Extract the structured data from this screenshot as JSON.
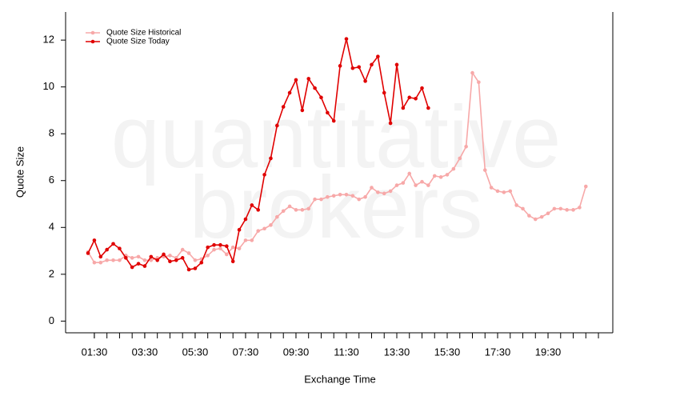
{
  "chart_data": {
    "type": "line",
    "watermark": [
      "quantitative",
      "brokers"
    ],
    "x_label": "Exchange Time",
    "y_label": "Quote Size",
    "x": [
      1.25,
      1.5,
      1.75,
      2,
      2.25,
      2.5,
      2.75,
      3,
      3.25,
      3.5,
      3.75,
      4,
      4.25,
      4.5,
      4.75,
      5,
      5.25,
      5.5,
      5.75,
      6,
      6.25,
      6.5,
      6.75,
      7,
      7.25,
      7.5,
      7.75,
      8,
      8.25,
      8.5,
      8.75,
      9,
      9.25,
      9.5,
      9.75,
      10,
      10.25,
      10.5,
      10.75,
      11,
      11.25,
      11.5,
      11.75,
      12,
      12.25,
      12.5,
      12.75,
      13,
      13.25,
      13.5,
      13.75,
      14,
      14.25,
      14.5,
      14.75,
      15,
      15.25,
      15.5,
      15.75,
      16,
      16.25,
      16.5,
      16.75,
      17,
      17.25,
      17.5,
      17.75,
      18,
      18.25,
      18.5,
      18.75,
      19,
      19.25,
      19.5,
      19.75,
      20,
      20.25,
      20.5,
      20.75,
      21
    ],
    "series": [
      {
        "name": "Quote Size Historical",
        "color": "#f7a8a8",
        "values": [
          2.95,
          2.5,
          2.5,
          2.6,
          2.6,
          2.6,
          2.8,
          2.7,
          2.75,
          2.6,
          2.6,
          2.7,
          2.75,
          2.8,
          2.7,
          3.05,
          2.9,
          2.6,
          2.65,
          2.8,
          3.05,
          3.1,
          2.85,
          3.15,
          3.1,
          3.45,
          3.45,
          3.85,
          3.95,
          4.1,
          4.45,
          4.7,
          4.9,
          4.75,
          4.75,
          4.8,
          5.2,
          5.2,
          5.3,
          5.35,
          5.4,
          5.4,
          5.35,
          5.2,
          5.3,
          5.7,
          5.5,
          5.45,
          5.55,
          5.8,
          5.9,
          6.3,
          5.8,
          5.95,
          5.8,
          6.2,
          6.15,
          6.25,
          6.5,
          6.95,
          7.45,
          10.6,
          10.2,
          6.45,
          5.7,
          5.55,
          5.5,
          5.55,
          4.95,
          4.8,
          4.5,
          4.35,
          4.45,
          4.6,
          4.8,
          4.8,
          4.75,
          4.75,
          4.85,
          5.75
        ]
      },
      {
        "name": "Quote Size Today",
        "color": "#e00000",
        "values": [
          2.9,
          3.45,
          2.75,
          3.05,
          3.3,
          3.1,
          2.7,
          2.3,
          2.45,
          2.35,
          2.75,
          2.6,
          2.85,
          2.55,
          2.6,
          2.7,
          2.2,
          2.25,
          2.5,
          3.15,
          3.25,
          3.25,
          3.2,
          2.55,
          3.9,
          4.35,
          4.95,
          4.75,
          6.25,
          6.95,
          8.35,
          9.15,
          9.75,
          10.3,
          9.0,
          10.35,
          9.95,
          9.55,
          8.9,
          8.55,
          10.9,
          12.05,
          10.8,
          10.85,
          10.25,
          10.95,
          11.3,
          9.75,
          8.45,
          10.95,
          9.1,
          9.55,
          9.5,
          9.95,
          9.1,
          null,
          null,
          null,
          null,
          null,
          null,
          null,
          null,
          null,
          null,
          null,
          null,
          null,
          null,
          null,
          null,
          null,
          null,
          null,
          null,
          null,
          null,
          null,
          null,
          null
        ]
      }
    ],
    "xlim": [
      0.36,
      22.07
    ],
    "xticks": [
      {
        "value": 1.5,
        "label": "01:30"
      },
      {
        "value": 3.5,
        "label": "03:30"
      },
      {
        "value": 5.5,
        "label": "05:30"
      },
      {
        "value": 7.5,
        "label": "07:30"
      },
      {
        "value": 9.5,
        "label": "09:30"
      },
      {
        "value": 11.5,
        "label": "11:30"
      },
      {
        "value": 13.5,
        "label": "13:30"
      },
      {
        "value": 15.5,
        "label": "15:30"
      },
      {
        "value": 17.5,
        "label": "17:30"
      },
      {
        "value": 19.5,
        "label": "19:30"
      }
    ],
    "xminorticks": [
      1.5,
      2,
      2.5,
      3,
      3.5,
      4,
      4.5,
      5,
      5.5,
      6,
      6.5,
      7,
      7.5,
      8,
      8.5,
      9,
      9.5,
      10,
      10.5,
      11,
      11.5,
      12,
      12.5,
      13,
      13.5,
      14,
      14.5,
      15,
      15.5,
      16,
      16.5,
      17,
      17.5,
      18,
      18.5,
      19,
      19.5,
      20,
      20.5,
      21,
      21.5
    ],
    "ylim": [
      -0.5,
      13.2
    ],
    "yticks": [
      0,
      2,
      4,
      6,
      8,
      10,
      12
    ],
    "legend": "top-left",
    "markers": true
  }
}
